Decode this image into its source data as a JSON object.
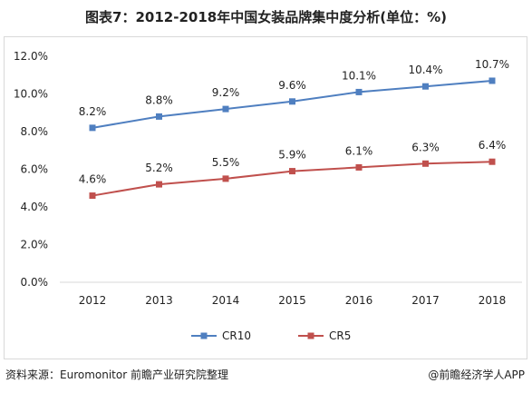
{
  "title": "图表7：2012-2018年中国女装品牌集中度分析(单位：%)",
  "footer": {
    "source": "资料来源：Euromonitor 前瞻产业研究院整理",
    "brand": "@前瞻经济学人APP"
  },
  "colors": {
    "CR10": "#4f7fc0",
    "CR5": "#c0504d"
  },
  "chart_data": {
    "type": "line",
    "title": "图表7：2012-2018年中国女装品牌集中度分析(单位：%)",
    "xlabel": "",
    "ylabel": "",
    "categories": [
      "2012",
      "2013",
      "2014",
      "2015",
      "2016",
      "2017",
      "2018"
    ],
    "ylim": [
      0,
      12
    ],
    "yticks": [
      "0.0%",
      "2.0%",
      "4.0%",
      "6.0%",
      "8.0%",
      "10.0%",
      "12.0%"
    ],
    "legend_position": "bottom",
    "series": [
      {
        "name": "CR10",
        "values": [
          8.2,
          8.8,
          9.2,
          9.6,
          10.1,
          10.4,
          10.7
        ],
        "labels": [
          "8.2%",
          "8.8%",
          "9.2%",
          "9.6%",
          "10.1%",
          "10.4%",
          "10.7%"
        ]
      },
      {
        "name": "CR5",
        "values": [
          4.6,
          5.2,
          5.5,
          5.9,
          6.1,
          6.3,
          6.4
        ],
        "labels": [
          "4.6%",
          "5.2%",
          "5.5%",
          "5.9%",
          "6.1%",
          "6.3%",
          "6.4%"
        ]
      }
    ]
  }
}
